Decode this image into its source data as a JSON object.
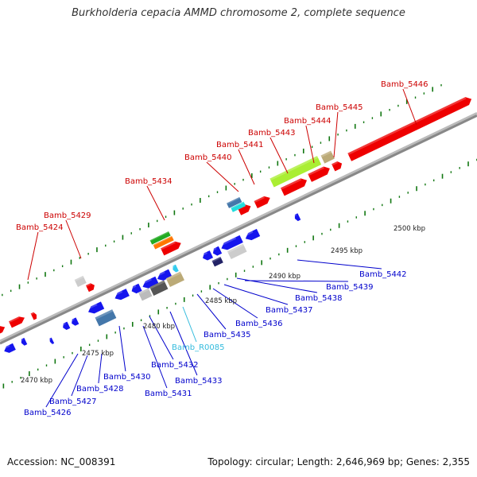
{
  "title": "Burkholderia cepacia AMMD chromosome 2, complete sequence",
  "footer": {
    "accession": "Accession: NC_008391",
    "summary": "Topology: circular; Length: 2,646,969 bp; Genes: 2,355"
  },
  "scale_labels": [
    "2470 kbp",
    "2475 kbp",
    "2480 kbp",
    "2485 kbp",
    "2490 kbp",
    "2495 kbp",
    "2500 kbp"
  ],
  "colors": {
    "forward_label": "#cc0000",
    "reverse_label": "#0000cc",
    "rna_label": "#33bbdd",
    "forward_gene": "#ee0000",
    "reverse_gene": "#1515ee",
    "backbone": "#888888",
    "tick": "#117711"
  },
  "forward_labels": [
    "Bamb_5424",
    "Bamb_5429",
    "Bamb_5434",
    "Bamb_5440",
    "Bamb_5441",
    "Bamb_5443",
    "Bamb_5444",
    "Bamb_5445",
    "Bamb_5446"
  ],
  "reverse_labels": [
    "Bamb_5426",
    "Bamb_5427",
    "Bamb_5428",
    "Bamb_5430",
    "Bamb_5431",
    "Bamb_5432",
    "Bamb_R0085",
    "Bamb_5433",
    "Bamb_5435",
    "Bamb_5436",
    "Bamb_5437",
    "Bamb_5438",
    "Bamb_5439",
    "Bamb_5442"
  ]
}
